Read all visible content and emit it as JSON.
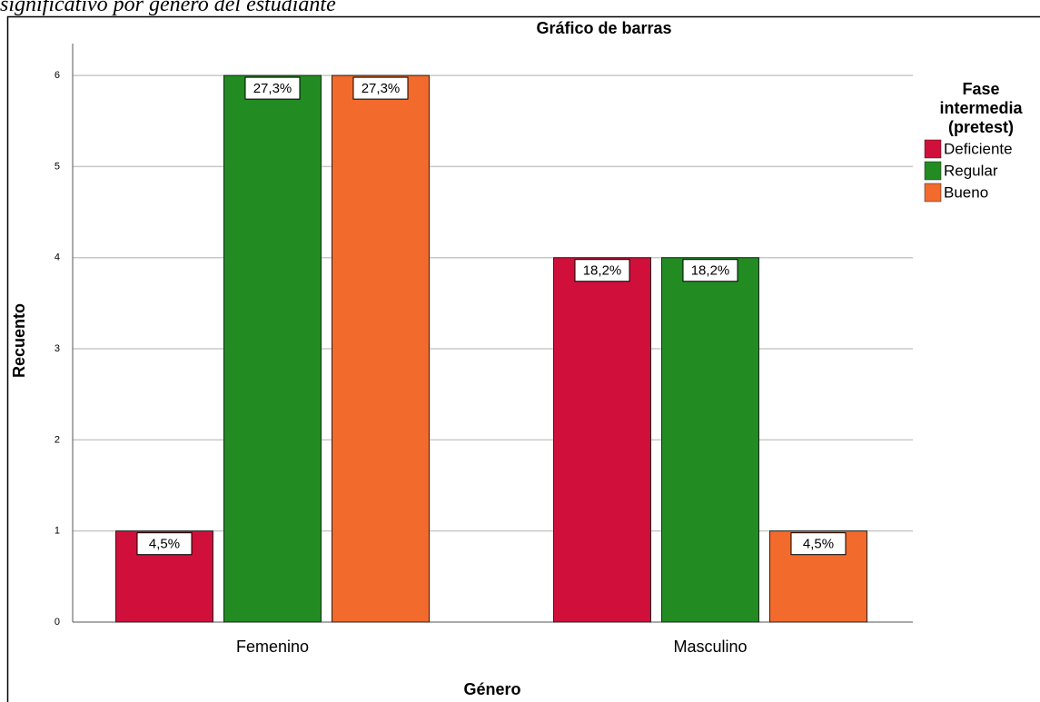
{
  "chart_data": {
    "type": "bar",
    "caption": "significativo por género del estudiante",
    "title": "Gráfico de barras",
    "x_label": "Género",
    "y_label": "Recuento",
    "legend_title": "Fase intermedia (pretest)",
    "categories": [
      "Femenino",
      "Masculino"
    ],
    "series": [
      {
        "name": "Deficiente",
        "color": "#d0103a",
        "values": [
          1,
          4
        ],
        "value_labels": [
          "4,5%",
          "18,2%"
        ]
      },
      {
        "name": "Regular",
        "color": "#228b22",
        "values": [
          6,
          4
        ],
        "value_labels": [
          "27,3%",
          "18,2%"
        ]
      },
      {
        "name": "Bueno",
        "color": "#f26a2c",
        "values": [
          6,
          1
        ],
        "value_labels": [
          "27,3%",
          "4,5%"
        ]
      }
    ],
    "ylim": [
      0,
      6.35
    ],
    "yticks": [
      0,
      1,
      2,
      3,
      4,
      5,
      6
    ],
    "grid": true,
    "legend": "right"
  }
}
